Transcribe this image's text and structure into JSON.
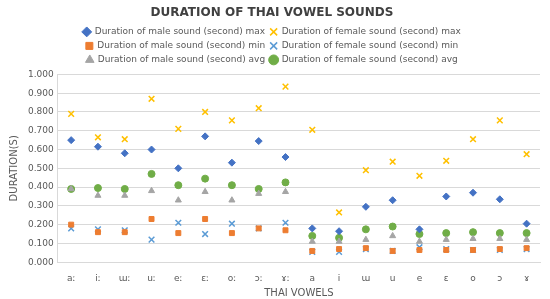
{
  "chart_data": {
    "type": "scatter",
    "title": "DURATION OF THAI VOWEL SOUNDS",
    "x_label": "THAI VOWELS",
    "y_label": "DURATION(S)",
    "categories": [
      "aː",
      "iː",
      "ɯː",
      "uː",
      "eː",
      "ɛː",
      "oː",
      "ɔː",
      "ɤː",
      "a",
      "i",
      "ɯ",
      "u",
      "e",
      "ɛ",
      "o",
      "ɔ",
      "ɤ"
    ],
    "series": [
      {
        "name": "Duration of male sound (second) max",
        "color": "#4472c4",
        "marker": "diamond",
        "values": [
          0.65,
          0.615,
          0.58,
          0.6,
          0.5,
          0.67,
          0.53,
          0.645,
          0.56,
          0.18,
          0.165,
          0.295,
          0.33,
          0.175,
          0.35,
          0.37,
          0.335,
          0.205
        ]
      },
      {
        "name": "Duration of female sound (second) max",
        "color": "#ffc000",
        "marker": "x",
        "values": [
          0.79,
          0.665,
          0.655,
          0.87,
          0.71,
          0.8,
          0.755,
          0.82,
          0.935,
          0.705,
          0.265,
          0.49,
          0.535,
          0.46,
          0.54,
          0.655,
          0.755,
          0.575
        ]
      },
      {
        "name": "Duration of male sound (second) min",
        "color": "#ed7d31",
        "marker": "square",
        "values": [
          0.2,
          0.16,
          0.16,
          0.23,
          0.155,
          0.23,
          0.155,
          0.18,
          0.17,
          0.06,
          0.07,
          0.075,
          0.06,
          0.065,
          0.065,
          0.065,
          0.07,
          0.075
        ]
      },
      {
        "name": "Duration of female sound (second) min",
        "color": "#5b9bd5",
        "marker": "x",
        "values": [
          0.18,
          0.175,
          0.17,
          0.12,
          0.21,
          0.15,
          0.205,
          0.18,
          0.21,
          0.055,
          0.055,
          0.07,
          0.06,
          0.08,
          0.07,
          0.065,
          0.065,
          0.07
        ]
      },
      {
        "name": "Duration of male sound (second) avg",
        "color": "#a5a5a5",
        "marker": "triangle",
        "values": [
          0.39,
          0.355,
          0.355,
          0.38,
          0.33,
          0.375,
          0.33,
          0.365,
          0.375,
          0.11,
          0.11,
          0.12,
          0.14,
          0.11,
          0.12,
          0.125,
          0.125,
          0.12
        ]
      },
      {
        "name": "Duration of female sound (second) avg",
        "color": "#70ad47",
        "marker": "circle",
        "values": [
          0.39,
          0.395,
          0.39,
          0.47,
          0.41,
          0.445,
          0.41,
          0.39,
          0.425,
          0.14,
          0.13,
          0.175,
          0.19,
          0.15,
          0.155,
          0.16,
          0.155,
          0.155
        ]
      }
    ],
    "ylim": [
      0,
      1
    ],
    "yticks": [
      {
        "value": 0,
        "label": "0.000"
      },
      {
        "value": 0.1,
        "label": "0.100"
      },
      {
        "value": 0.2,
        "label": "0.200"
      },
      {
        "value": 0.3,
        "label": "0.300"
      },
      {
        "value": 0.4,
        "label": "0.400"
      },
      {
        "value": 0.5,
        "label": "0.500"
      },
      {
        "value": 0.6,
        "label": "0.600"
      },
      {
        "value": 0.7,
        "label": "0.700"
      },
      {
        "value": 0.8,
        "label": "0.800"
      },
      {
        "value": 0.9,
        "label": "0.900"
      },
      {
        "value": 1,
        "label": "1.000"
      }
    ],
    "grid": true,
    "legend": "top"
  }
}
